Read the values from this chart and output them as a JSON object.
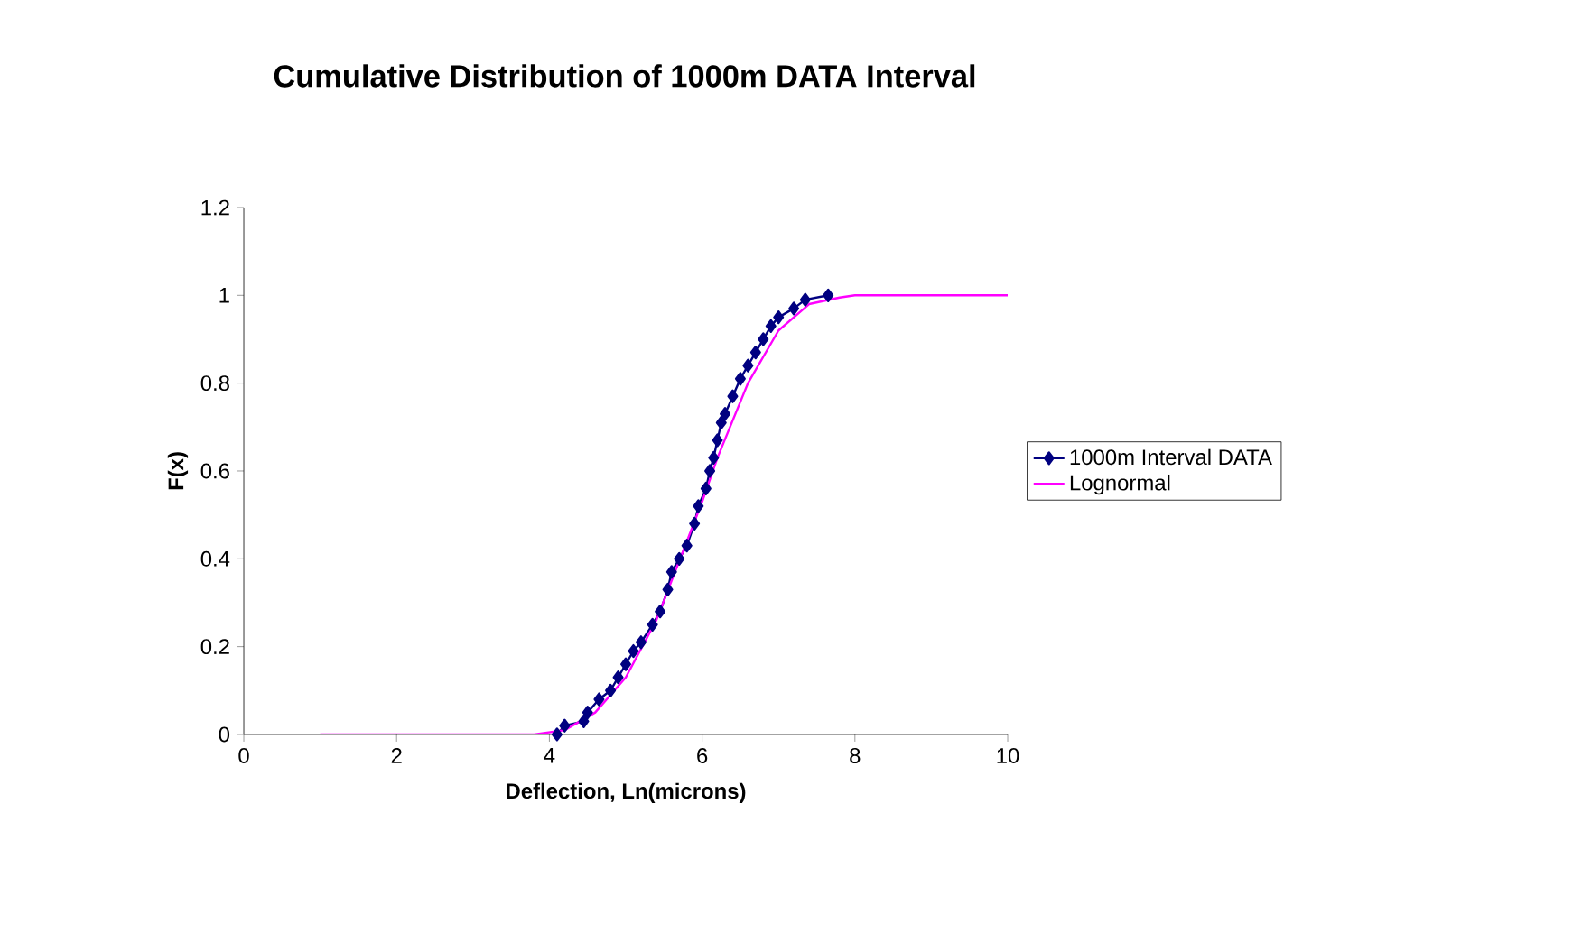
{
  "chart_data": {
    "type": "line",
    "title": "Cumulative Distribution of 1000m DATA Interval",
    "xlabel": "Deflection, Ln(microns)",
    "ylabel": "F(x)",
    "xlim": [
      0,
      10
    ],
    "xticks": [
      0,
      2,
      4,
      6,
      8,
      10
    ],
    "ylim": [
      0,
      1.2
    ],
    "yticks": [
      0,
      0.2,
      0.4,
      0.6,
      0.8,
      1,
      1.2
    ],
    "grid": false,
    "legend": "right",
    "series": [
      {
        "name": "1000m Interval DATA",
        "color": "#000080",
        "marker": "diamond",
        "x": [
          4.1,
          4.2,
          4.45,
          4.5,
          4.65,
          4.8,
          4.9,
          5.0,
          5.1,
          5.2,
          5.35,
          5.45,
          5.55,
          5.6,
          5.7,
          5.8,
          5.9,
          5.95,
          6.05,
          6.1,
          6.15,
          6.2,
          6.25,
          6.3,
          6.4,
          6.5,
          6.6,
          6.7,
          6.8,
          6.9,
          7.0,
          7.2,
          7.35,
          7.65
        ],
        "values": [
          0,
          0.02,
          0.03,
          0.05,
          0.08,
          0.1,
          0.13,
          0.16,
          0.19,
          0.21,
          0.25,
          0.28,
          0.33,
          0.37,
          0.4,
          0.43,
          0.48,
          0.52,
          0.56,
          0.6,
          0.63,
          0.67,
          0.71,
          0.73,
          0.77,
          0.81,
          0.84,
          0.87,
          0.9,
          0.93,
          0.95,
          0.97,
          0.99,
          1
        ]
      },
      {
        "name": "Lognormal",
        "color": "#ff00ff",
        "marker": "none",
        "x": [
          1,
          3.8,
          4.2,
          4.6,
          5,
          5.4,
          5.8,
          6.0,
          6.2,
          6.6,
          7.0,
          7.4,
          7.8,
          8,
          10
        ],
        "values": [
          0,
          0,
          0.01,
          0.05,
          0.13,
          0.26,
          0.44,
          0.53,
          0.63,
          0.8,
          0.92,
          0.98,
          0.995,
          1,
          1
        ]
      }
    ]
  }
}
